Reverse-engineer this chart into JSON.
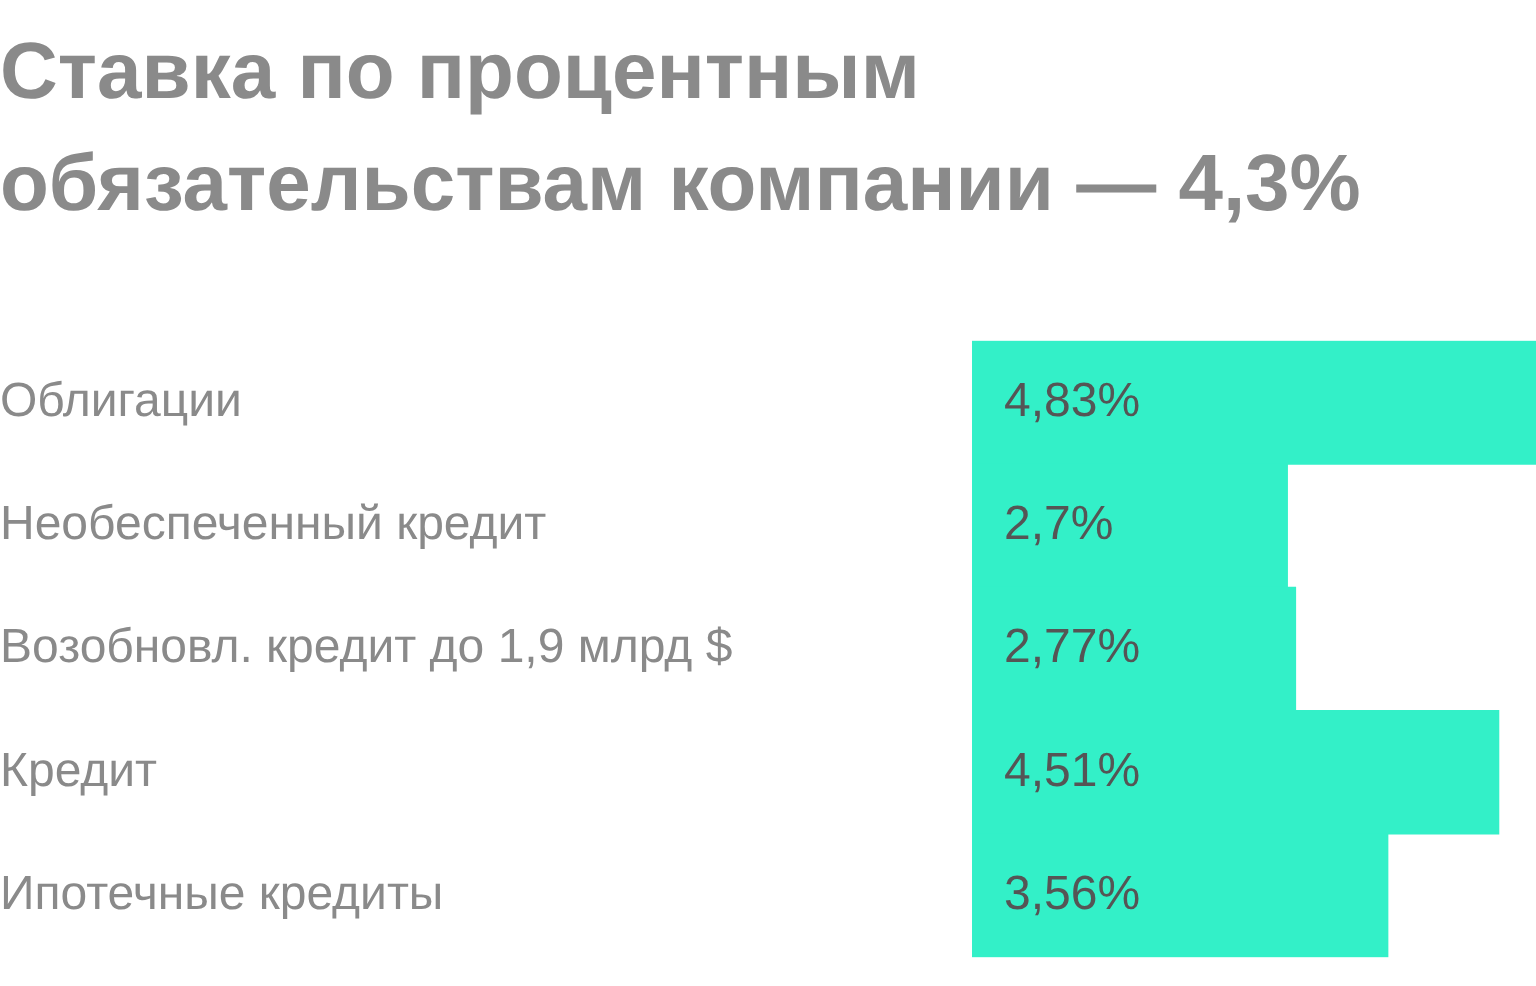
{
  "chart_data": {
    "type": "bar",
    "orientation": "horizontal",
    "title": "Ставка по процентным обязательствам компании — 4,3%",
    "categories": [
      "Облигации",
      "Необеспеченный кредит",
      "Возобновл. кредит до 1,9 млрд $",
      "Кредит",
      "Ипотечные кредиты"
    ],
    "values": [
      4.83,
      2.7,
      2.77,
      4.51,
      3.56
    ],
    "value_labels": [
      "4,83%",
      "2,7%",
      "2,77%",
      "4,51%",
      "3,56%"
    ],
    "color": "#33f0c8",
    "legend": false,
    "tick_labels": "y"
  }
}
